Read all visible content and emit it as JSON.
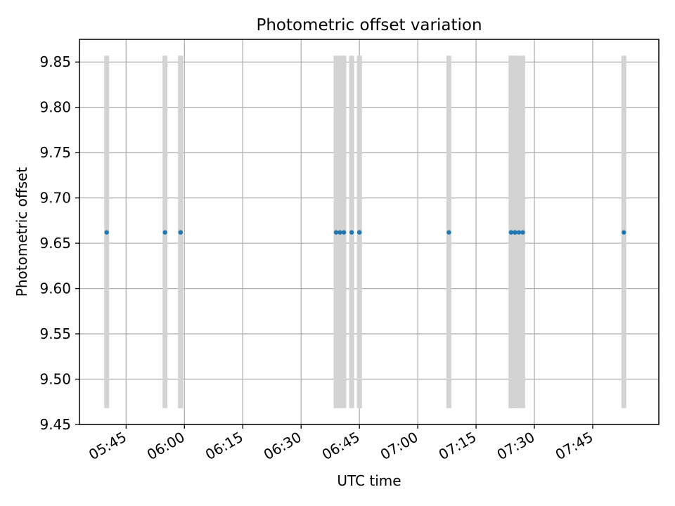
{
  "chart_data": {
    "type": "scatter",
    "title": "Photometric offset variation",
    "xlabel": "UTC time",
    "ylabel": "Photometric offset",
    "ylim": [
      9.45,
      9.875
    ],
    "xlim": [
      "05:33",
      "08:02"
    ],
    "x_ticks": [
      "05:45",
      "06:00",
      "06:15",
      "06:30",
      "06:45",
      "07:00",
      "07:15",
      "07:30",
      "07:45"
    ],
    "y_ticks": [
      "9.45",
      "9.50",
      "9.55",
      "9.60",
      "9.65",
      "9.70",
      "9.75",
      "9.80",
      "9.85"
    ],
    "grid": true,
    "series": [
      {
        "color": "#1f77b4",
        "x": [
          "05:40",
          "05:55",
          "05:59",
          "05:59",
          "06:39",
          "06:40",
          "06:41",
          "06:43",
          "06:45",
          "06:45",
          "07:08",
          "07:24",
          "07:24",
          "07:25",
          "07:25",
          "07:26",
          "07:27"
        ],
        "y": [
          9.662,
          9.662,
          9.662,
          9.662,
          9.662,
          9.662,
          9.662,
          9.662,
          9.662,
          9.662,
          9.662,
          9.662,
          9.662,
          9.662,
          9.662,
          9.662,
          9.662
        ],
        "error_bars": {
          "color": "#d3d3d3",
          "lower": 9.468,
          "upper": 9.857
        }
      }
    ],
    "extra_point": {
      "x": "07:53",
      "y": 9.662
    }
  },
  "colors": {
    "point": "#1f77b4",
    "errorbar": "#d3d3d3",
    "grid": "#b0b0b0",
    "axes": "#000000"
  }
}
